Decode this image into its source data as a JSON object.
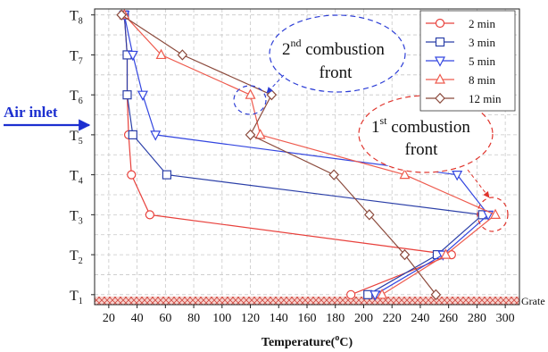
{
  "chart_data": {
    "type": "line",
    "xlabel_main": "Temperature(",
    "xlabel_sup": "o",
    "xlabel_tail": "C)",
    "xlim": [
      10,
      310
    ],
    "xticks": [
      20,
      40,
      60,
      80,
      100,
      120,
      140,
      160,
      180,
      200,
      220,
      240,
      260,
      280,
      300
    ],
    "ylim": [
      0.75,
      8.15
    ],
    "y_categories": [
      {
        "main": "T",
        "sub": "1",
        "y": 1
      },
      {
        "main": "T",
        "sub": "2",
        "y": 2
      },
      {
        "main": "T",
        "sub": "3",
        "y": 3
      },
      {
        "main": "T",
        "sub": "4",
        "y": 4
      },
      {
        "main": "T",
        "sub": "5",
        "y": 5
      },
      {
        "main": "T",
        "sub": "6",
        "y": 6
      },
      {
        "main": "T",
        "sub": "7",
        "y": 7
      },
      {
        "main": "T",
        "sub": "8",
        "y": 8
      }
    ],
    "grid": true,
    "legend_position": "top-right",
    "series": [
      {
        "name": "2 min",
        "color": "#e8413c",
        "marker": "circle",
        "points": [
          [
            191,
            1
          ],
          [
            262,
            2
          ],
          [
            49,
            3
          ],
          [
            36,
            4
          ],
          [
            34,
            5
          ],
          [
            33,
            6
          ],
          [
            33,
            7
          ],
          [
            31,
            8
          ]
        ]
      },
      {
        "name": "3 min",
        "color": "#2b3fa8",
        "marker": "square",
        "points": [
          [
            203,
            1
          ],
          [
            252,
            2
          ],
          [
            284,
            3
          ],
          [
            61,
            4
          ],
          [
            37,
            5
          ],
          [
            33,
            6
          ],
          [
            33,
            7
          ],
          [
            31,
            8
          ]
        ]
      },
      {
        "name": "5 min",
        "color": "#3346e0",
        "marker": "triangle-down",
        "points": [
          [
            208,
            1
          ],
          [
            256,
            2
          ],
          [
            288,
            3
          ],
          [
            266,
            4
          ],
          [
            53,
            5
          ],
          [
            44,
            6
          ],
          [
            37,
            7
          ],
          [
            31,
            8
          ]
        ]
      },
      {
        "name": "8 min",
        "color": "#ee5a4d",
        "marker": "triangle-up",
        "points": [
          [
            213,
            1
          ],
          [
            258,
            2
          ],
          [
            293,
            3
          ],
          [
            229,
            4
          ],
          [
            127,
            5
          ],
          [
            120,
            6
          ],
          [
            57,
            7
          ],
          [
            31,
            8
          ]
        ]
      },
      {
        "name": "12 min",
        "color": "#8b4a3c",
        "marker": "diamond",
        "points": [
          [
            251,
            1
          ],
          [
            229,
            2
          ],
          [
            204,
            3
          ],
          [
            179,
            4
          ],
          [
            120,
            5
          ],
          [
            135,
            6
          ],
          [
            72,
            7
          ],
          [
            29,
            8
          ]
        ]
      }
    ],
    "grate_label": "Grate"
  },
  "annotations": {
    "second_front": {
      "num": "2",
      "sup": "nd",
      "line1": " combustion",
      "line2": "front",
      "color": "#2d3ed6"
    },
    "first_front": {
      "num": "1",
      "sup": "st",
      "line1": " combustion",
      "line2": "front",
      "color": "#e0342c"
    },
    "air_inlet": {
      "label": "Air inlet",
      "color": "#1c2fd0"
    }
  }
}
